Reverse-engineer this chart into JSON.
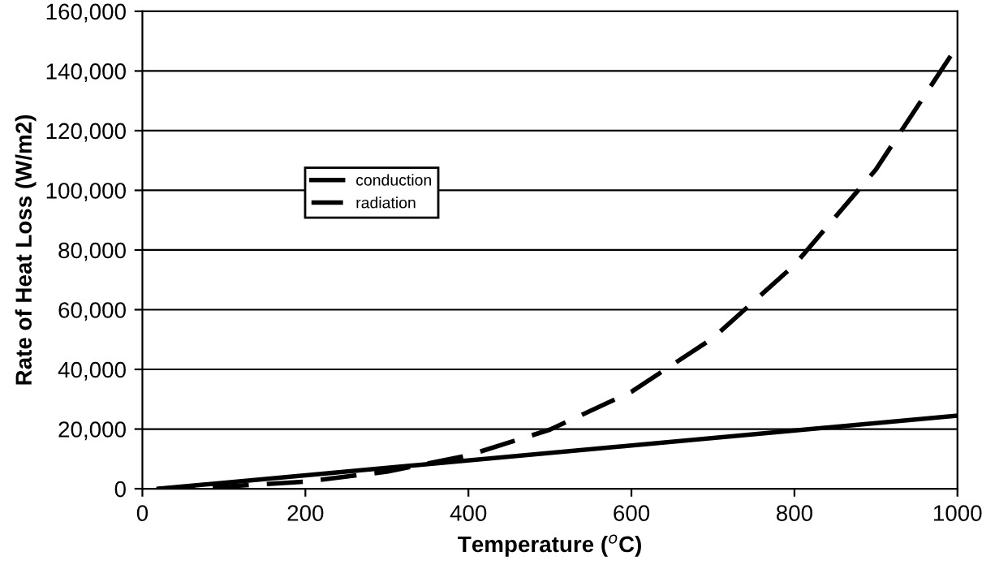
{
  "chart_data": {
    "type": "line",
    "xlabel": "Temperature ($^{o}$C)",
    "ylabel": "Rate of Heat Loss (W/m2)",
    "xlim": [
      0,
      1000
    ],
    "xticks": [
      0,
      200,
      400,
      600,
      800,
      1000
    ],
    "ylim": [
      0,
      160000
    ],
    "yticks": [
      {
        "value": 0,
        "label": "0"
      },
      {
        "value": 20000,
        "label": "20,000"
      },
      {
        "value": 40000,
        "label": "40,000"
      },
      {
        "value": 60000,
        "label": "60,000"
      },
      {
        "value": 80000,
        "label": "80,000"
      },
      {
        "value": 100000,
        "label": "100,000"
      },
      {
        "value": 120000,
        "label": "120,000"
      },
      {
        "value": 140000,
        "label": "140,000"
      },
      {
        "value": 160000,
        "label": "160,000"
      }
    ],
    "grid": "y",
    "legend": "left",
    "marker": "none",
    "series": [
      {
        "name": "conduction",
        "color": "#000000",
        "line_style": "solid",
        "x": [
          20,
          1000
        ],
        "values": [
          0,
          24500
        ]
      },
      {
        "name": "radiation",
        "color": "#000000",
        "line_style": "dashed",
        "x": [
          20,
          100,
          200,
          300,
          400,
          500,
          600,
          700,
          800,
          900,
          1000
        ],
        "values": [
          0,
          700,
          2400,
          5700,
          11200,
          19800,
          32500,
          50500,
          75000,
          107000,
          148500
        ]
      }
    ]
  }
}
